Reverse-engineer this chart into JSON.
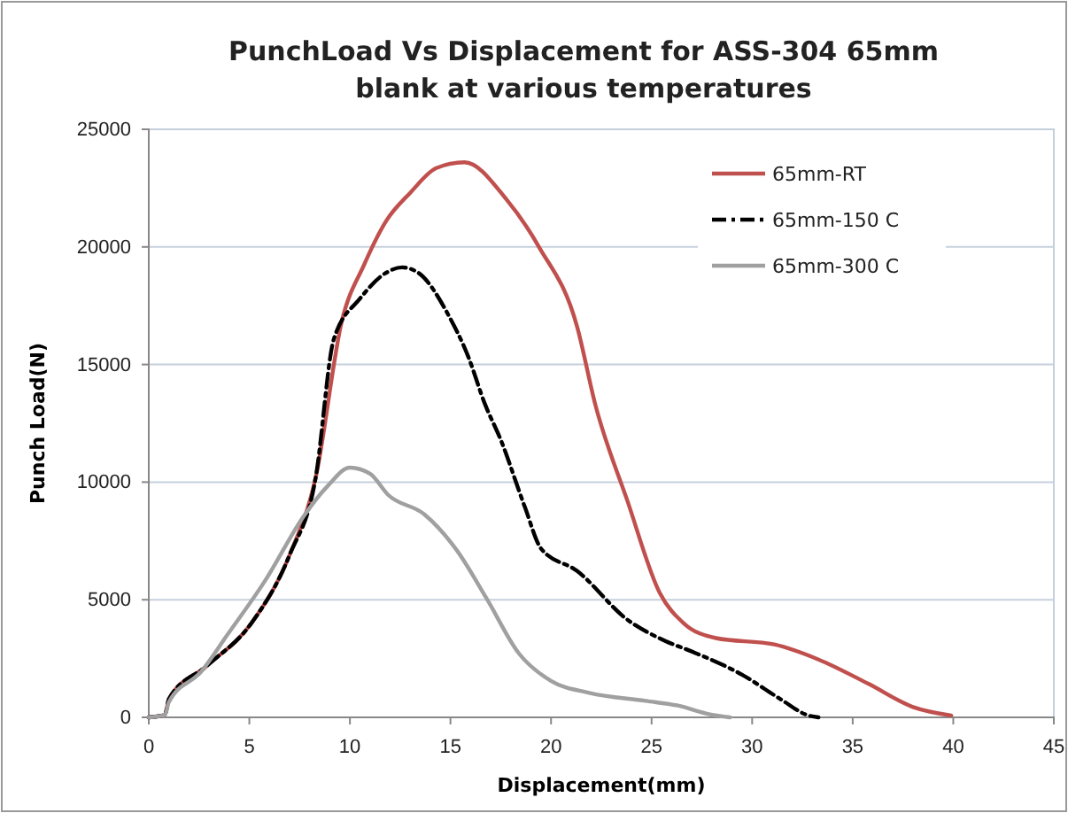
{
  "chart_data": {
    "type": "line",
    "title": "PunchLoad Vs Displacement  for ASS-304  65mm blank at various temperatures",
    "xlabel": "Displacement(mm)",
    "ylabel": "Punch Load(N)",
    "xlim": [
      0,
      45
    ],
    "xticks": [
      0,
      5,
      10,
      15,
      20,
      25,
      30,
      35,
      40,
      45
    ],
    "ylim": [
      0,
      25000
    ],
    "yticks": [
      0,
      5000,
      10000,
      15000,
      20000,
      25000
    ],
    "grid": "y",
    "legend": "top right",
    "marker": "none",
    "series": [
      {
        "name": "65mm-RT",
        "color": "#c0504d",
        "line_style": "solid",
        "x": [
          0,
          0.8,
          1.0,
          2.9,
          5.1,
          7.0,
          8.3,
          9.6,
          10.7,
          11.8,
          13.0,
          14.3,
          15.7,
          17.8,
          19.4,
          21.3,
          22.2,
          23.8,
          25.4,
          26.6,
          28.2,
          31.1,
          33.3,
          35.8,
          38.0,
          39.9
        ],
        "values": [
          0,
          100,
          780,
          2200,
          4000,
          6900,
          10200,
          16850,
          19230,
          21100,
          22300,
          23350,
          23600,
          22000,
          20000,
          16600,
          13300,
          9200,
          5300,
          4000,
          3370,
          3100,
          2460,
          1420,
          440,
          80
        ]
      },
      {
        "name": "65mm-150 C",
        "color": "#000000",
        "line_style": "dashed",
        "x": [
          0,
          0.8,
          1.0,
          2.9,
          5.1,
          7.0,
          8.3,
          9.2,
          10.5,
          11.8,
          12.6,
          13.4,
          14.9,
          15.9,
          16.7,
          17.5,
          18.7,
          19.5,
          21.3,
          23.8,
          25.7,
          27.0,
          29.5,
          31.4,
          32.8,
          33.3
        ],
        "values": [
          0,
          100,
          780,
          2200,
          4000,
          6900,
          10200,
          16080,
          17800,
          18900,
          19130,
          18900,
          17100,
          15300,
          13350,
          11800,
          8940,
          7180,
          6220,
          4150,
          3240,
          2800,
          1810,
          780,
          80,
          0
        ]
      },
      {
        "name": "65mm-300 C",
        "color": "#a0a0a0",
        "line_style": "solid",
        "x": [
          0,
          0.8,
          1.0,
          2.6,
          3.9,
          5.8,
          7.7,
          8.9,
          10.0,
          11.0,
          11.9,
          13.7,
          15.3,
          16.8,
          18.4,
          20.0,
          21.9,
          24.7,
          26.3,
          27.9,
          28.9
        ],
        "values": [
          0,
          100,
          650,
          1940,
          3500,
          5830,
          8550,
          9840,
          10620,
          10360,
          9460,
          8630,
          7120,
          5050,
          2720,
          1550,
          1040,
          700,
          500,
          130,
          0
        ]
      }
    ]
  }
}
